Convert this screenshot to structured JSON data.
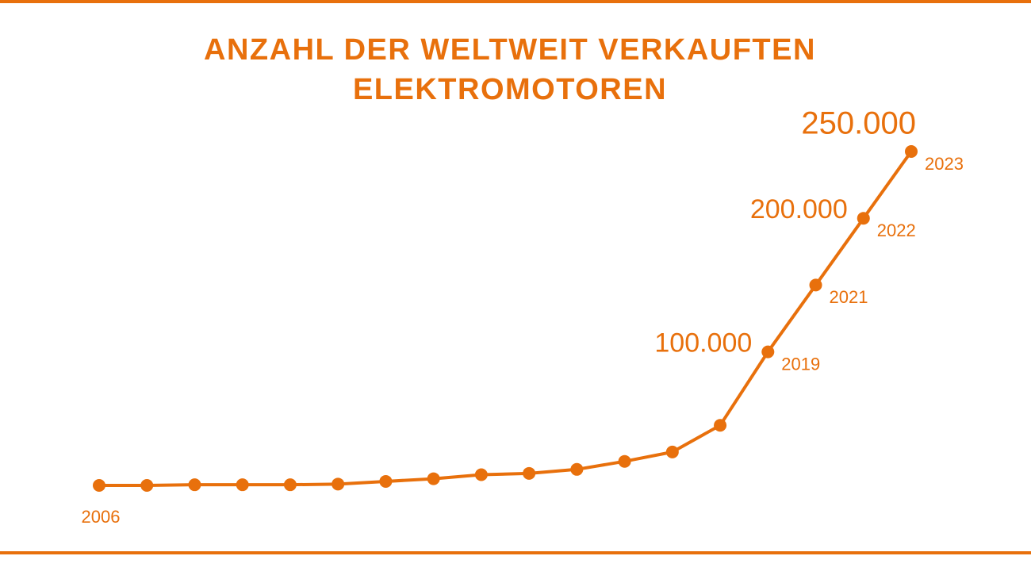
{
  "chart_data": {
    "type": "line",
    "title": "ANZAHL DER WELTWEIT VERKAUFTEN ELEKTROMOTOREN",
    "categories": [
      "2006",
      null,
      null,
      null,
      null,
      null,
      null,
      null,
      null,
      null,
      null,
      null,
      null,
      null,
      "2019",
      "2021",
      "2022",
      "2023"
    ],
    "series": [
      {
        "color": "#e8700c",
        "values": [
          0,
          0,
          500,
          500,
          500,
          1000,
          3000,
          5000,
          8000,
          9000,
          12000,
          18000,
          25000,
          45000,
          100000,
          150000,
          200000,
          250000
        ],
        "value_labels": [
          null,
          null,
          null,
          null,
          null,
          null,
          null,
          null,
          null,
          null,
          null,
          null,
          null,
          null,
          "100.000",
          null,
          "200.000",
          "250.000"
        ]
      }
    ],
    "ylim": [
      0,
      250000
    ]
  }
}
